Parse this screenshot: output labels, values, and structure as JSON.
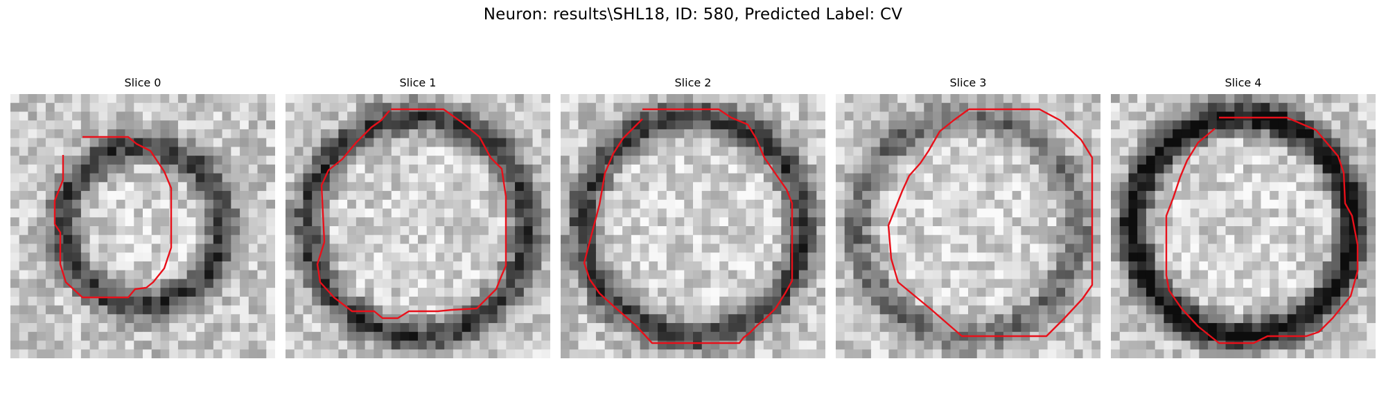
{
  "figure": {
    "title": "Neuron: results\\SHL18, ID: 580, Predicted Label: CV",
    "contour_color": "#e8101a",
    "image_style": "grayscale-noise-microscopy",
    "panels": [
      {
        "title": "Slice 0",
        "seed": 11,
        "contour_type": "small-octagon",
        "ring_contrast": "medium"
      },
      {
        "title": "Slice 1",
        "seed": 23,
        "contour_type": "large-polygon",
        "ring_contrast": "medium"
      },
      {
        "title": "Slice 2",
        "seed": 37,
        "contour_type": "large-polygon",
        "ring_contrast": "medium"
      },
      {
        "title": "Slice 3",
        "seed": 41,
        "contour_type": "large-octagon",
        "ring_contrast": "low"
      },
      {
        "title": "Slice 4",
        "seed": 53,
        "contour_type": "medium-octagon",
        "ring_contrast": "high"
      }
    ]
  }
}
